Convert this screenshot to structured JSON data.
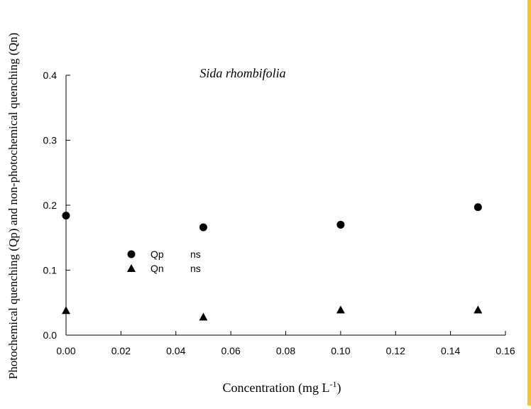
{
  "chart_data": {
    "type": "scatter",
    "title": "Sida rhombifolia",
    "xlabel": "Concentration (mg L",
    "xlabel_superscript": "-1",
    "xlabel_close": ")",
    "ylabel": "Photochemical quenching (Qp) and non-photochemical quenching (Qn)",
    "xlim": [
      0,
      0.16
    ],
    "ylim": [
      0,
      0.4
    ],
    "x_ticks": [
      "0.00",
      "0.02",
      "0.04",
      "0.06",
      "0.08",
      "0.10",
      "0.12",
      "0.14",
      "0.16"
    ],
    "y_ticks": [
      "0.0",
      "0.1",
      "0.2",
      "0.3",
      "0.4"
    ],
    "series": [
      {
        "name": "Qp",
        "significance": "ns",
        "marker": "circle",
        "x": [
          0.0,
          0.05,
          0.1,
          0.15
        ],
        "y": [
          0.184,
          0.166,
          0.17,
          0.197
        ]
      },
      {
        "name": "Qn",
        "significance": "ns",
        "marker": "triangle",
        "x": [
          0.0,
          0.05,
          0.1,
          0.15
        ],
        "y": [
          0.038,
          0.028,
          0.039,
          0.039
        ]
      }
    ],
    "legend_position": "center-left",
    "grid": false,
    "color": "#000000",
    "accent_rule_color": "#f2c230"
  }
}
